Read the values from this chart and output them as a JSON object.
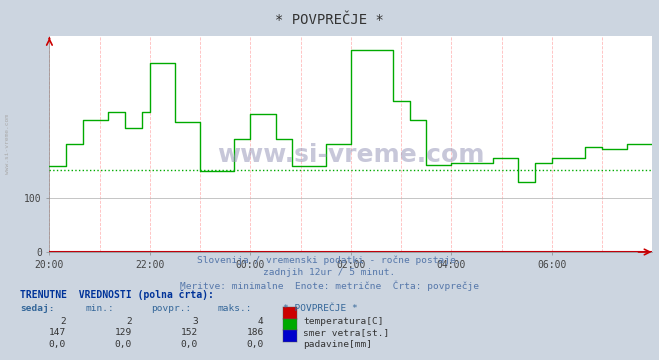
{
  "title": "* POVPREČJE *",
  "subtitle1": "Slovenija / vremenski podatki - ročne postaje.",
  "subtitle2": "zadnjih 12ur / 5 minut.",
  "subtitle3": "Meritve: minimalne  Enote: metrične  Črta: povprečje",
  "bg_color": "#ccd5e0",
  "plot_bg_color": "#ffffff",
  "xmin": 0,
  "xmax": 144,
  "ymin": 0,
  "ymax": 400,
  "ytick_vals": [
    0,
    100
  ],
  "ytick_labels": [
    "0",
    "100"
  ],
  "xtick_labels": [
    "20:00",
    "22:00",
    "00:00",
    "02:00",
    "04:00",
    "06:00"
  ],
  "xtick_positions": [
    0,
    24,
    48,
    72,
    96,
    120
  ],
  "watermark": "www.si-vreme.com",
  "left_label": "www.si-vreme.com",
  "temperature_color": "#cc0000",
  "wind_dir_color": "#00aa00",
  "precip_color": "#0000cc",
  "avg_wind": 152,
  "title_color": "#333333",
  "subtitle_color": "#5577aa",
  "table_header_color": "#003399",
  "table_col_color": "#336699",
  "table_val_color": "#333333",
  "temp_sedaj": 2,
  "temp_min": 2,
  "temp_povpr": 3,
  "temp_maks": 4,
  "wind_sedaj": 147,
  "wind_min": 129,
  "wind_povpr": 152,
  "wind_maks": 186,
  "precip_sedaj": "0,0",
  "precip_min": "0,0",
  "precip_povpr": "0,0",
  "precip_maks": "0,0"
}
